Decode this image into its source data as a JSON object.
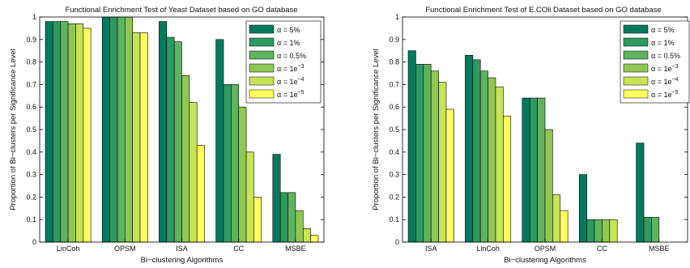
{
  "palette": [
    "#007a5e",
    "#2e9a62",
    "#5eb35e",
    "#8ec853",
    "#c7e356",
    "#ffff60"
  ],
  "legend_labels": [
    [
      "α = 5%",
      ""
    ],
    [
      "α = 1%",
      ""
    ],
    [
      "α = 0.5%",
      ""
    ],
    [
      "α = 1e",
      "−3"
    ],
    [
      "α = 1e",
      "−4"
    ],
    [
      "α = 1e",
      "−5"
    ]
  ],
  "chart_data": [
    {
      "type": "bar",
      "title": "Functional Enrichment Test of Yeast Dataset based on GO database",
      "xlabel": "Bi−clustering Algorithms",
      "ylabel": "Proportion of Bi−clusters per Significance Level",
      "ylim": [
        0,
        1
      ],
      "yticks": [
        "0",
        "0.1",
        "0.2",
        "0.3",
        "0.4",
        "0.5",
        "0.6",
        "0.7",
        "0.8",
        "0.9",
        "1"
      ],
      "legend_position": "top-right",
      "categories": [
        "LinCoh",
        "OPSM",
        "ISA",
        "CC",
        "MSBE"
      ],
      "series": [
        {
          "values": [
            0.98,
            1.0,
            0.98,
            0.9,
            0.39
          ]
        },
        {
          "values": [
            0.98,
            1.0,
            0.91,
            0.7,
            0.22
          ]
        },
        {
          "values": [
            0.98,
            1.0,
            0.89,
            0.7,
            0.22
          ]
        },
        {
          "values": [
            0.97,
            1.0,
            0.74,
            0.6,
            0.14
          ]
        },
        {
          "values": [
            0.97,
            0.93,
            0.62,
            0.4,
            0.06
          ]
        },
        {
          "values": [
            0.95,
            0.93,
            0.43,
            0.2,
            0.03
          ]
        }
      ]
    },
    {
      "type": "bar",
      "title": "Functional Enrichment Test of E.COli Dataset based on GO database",
      "xlabel": "Bi−clustering Algorithms",
      "ylabel": "Proportion of Bi−clusters per Significance Level",
      "ylim": [
        0,
        1
      ],
      "yticks": [
        "0",
        "0.1",
        "0.2",
        "0.3",
        "0.4",
        "0.5",
        "0.6",
        "0.7",
        "0.8",
        "0.9",
        "1"
      ],
      "legend_position": "top-right",
      "categories": [
        "ISA",
        "LinCoh",
        "OPSM",
        "CC",
        "MSBE"
      ],
      "series": [
        {
          "values": [
            0.85,
            0.83,
            0.64,
            0.3,
            0.44
          ]
        },
        {
          "values": [
            0.79,
            0.81,
            0.64,
            0.1,
            0.11
          ]
        },
        {
          "values": [
            0.79,
            0.76,
            0.64,
            0.1,
            0.11
          ]
        },
        {
          "values": [
            0.76,
            0.73,
            0.5,
            0.1,
            0.0
          ]
        },
        {
          "values": [
            0.71,
            0.69,
            0.21,
            0.1,
            0.0
          ]
        },
        {
          "values": [
            0.59,
            0.56,
            0.14,
            0.0,
            0.0
          ]
        }
      ]
    }
  ]
}
